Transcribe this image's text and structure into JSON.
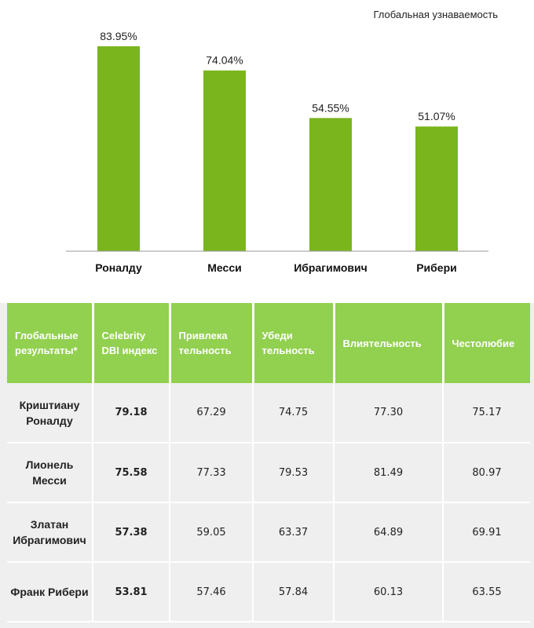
{
  "chart_data": {
    "type": "bar",
    "title": "Глобальная узнаваемость",
    "categories": [
      "Роналду",
      "Месси",
      "Ибрагимович",
      "Рибери"
    ],
    "values": [
      83.95,
      74.04,
      54.55,
      51.07
    ],
    "value_labels": [
      "83.95%",
      "74.04%",
      "54.55%",
      "51.07%"
    ],
    "ylim": [
      0,
      100
    ],
    "grid": false,
    "legend": "none",
    "bar_color": "#7ab51d"
  },
  "table": {
    "header_color": "#92d050",
    "columns": [
      "Глобальные результаты*",
      "Celebrity DBI индекс",
      "Привлека тельность",
      "Убеди тельность",
      "Влиятельность",
      "Честолюбие"
    ],
    "rows": [
      {
        "name": "Криштиану Роналду",
        "dbi": "79.18",
        "attractiveness": "67.29",
        "persuasiveness": "74.75",
        "influence": "77.30",
        "ambition": "75.17"
      },
      {
        "name": "Лионель Месси",
        "dbi": "75.58",
        "attractiveness": "77.33",
        "persuasiveness": "79.53",
        "influence": "81.49",
        "ambition": "80.97"
      },
      {
        "name": "Златан Ибрагимович",
        "dbi": "57.38",
        "attractiveness": "59.05",
        "persuasiveness": "63.37",
        "influence": "64.89",
        "ambition": "69.91"
      },
      {
        "name": "Франк Рибери",
        "dbi": "53.81",
        "attractiveness": "57.46",
        "persuasiveness": "57.84",
        "influence": "60.13",
        "ambition": "63.55"
      }
    ]
  }
}
